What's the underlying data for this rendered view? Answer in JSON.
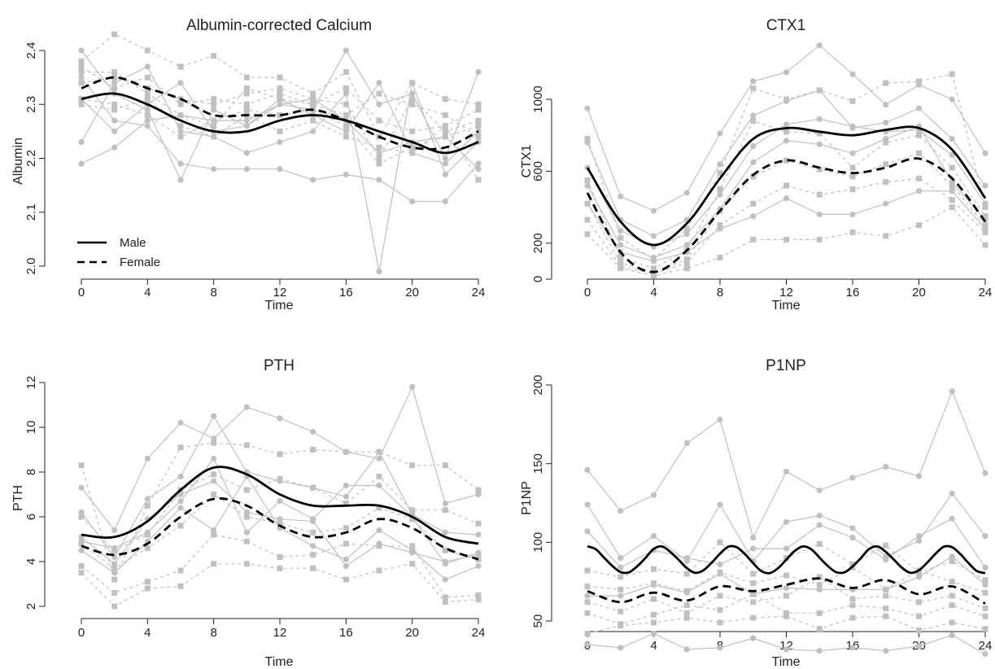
{
  "colors": {
    "individual": "#c0c0c0",
    "mean": "#000000",
    "axis": "#222222"
  },
  "chart_data": [
    {
      "type": "line",
      "title": "Albumin-corrected Calcium",
      "xlabel": "Time",
      "ylabel": "Albumin",
      "xlim": [
        0,
        24
      ],
      "ylim": [
        2.0,
        2.4
      ],
      "xticks": [
        0,
        4,
        8,
        12,
        16,
        20,
        24
      ],
      "yticks": [
        2.0,
        2.1,
        2.2,
        2.3,
        2.4
      ],
      "yticklabels": [
        "2.0",
        "2.1",
        "2.2",
        "2.3",
        "2.4"
      ],
      "legend": {
        "position": "bottom-left",
        "entries": [
          {
            "label": "Male",
            "style": "solid"
          },
          {
            "label": "Female",
            "style": "dashed"
          }
        ]
      },
      "x": [
        0,
        2,
        4,
        6,
        8,
        10,
        12,
        14,
        16,
        18,
        20,
        22,
        24
      ],
      "series": [
        {
          "name": "Male",
          "style": "solid",
          "values": [
            2.31,
            2.32,
            2.3,
            2.27,
            2.25,
            2.25,
            2.27,
            2.28,
            2.27,
            2.25,
            2.23,
            2.21,
            2.23
          ]
        },
        {
          "name": "Female",
          "style": "dashed",
          "values": [
            2.33,
            2.35,
            2.33,
            2.31,
            2.28,
            2.28,
            2.28,
            2.29,
            2.27,
            2.24,
            2.22,
            2.22,
            2.25
          ]
        }
      ],
      "individual_lines": [
        {
          "group": "Male",
          "values": [
            2.4,
            2.32,
            2.29,
            2.16,
            2.29,
            2.26,
            2.3,
            2.29,
            2.4,
            2.3,
            2.32,
            2.2,
            2.36
          ]
        },
        {
          "group": "Male",
          "values": [
            2.35,
            2.27,
            2.26,
            2.19,
            2.18,
            2.18,
            2.18,
            2.16,
            2.17,
            2.16,
            2.12,
            2.12,
            2.19
          ]
        },
        {
          "group": "Male",
          "values": [
            2.23,
            2.34,
            2.37,
            2.25,
            2.24,
            2.21,
            2.23,
            2.25,
            2.32,
            1.99,
            2.34,
            2.17,
            2.23
          ]
        },
        {
          "group": "Male",
          "values": [
            2.19,
            2.22,
            2.27,
            2.28,
            2.27,
            2.27,
            2.3,
            2.31,
            2.27,
            2.21,
            2.23,
            2.24,
            2.18
          ]
        },
        {
          "group": "Male",
          "values": [
            2.31,
            2.25,
            2.3,
            2.34,
            2.25,
            2.26,
            2.31,
            2.28,
            2.25,
            2.34,
            2.21,
            2.19,
            2.25
          ]
        },
        {
          "group": "Female",
          "values": [
            2.38,
            2.43,
            2.4,
            2.37,
            2.39,
            2.35,
            2.35,
            2.32,
            2.36,
            2.24,
            2.34,
            2.31,
            2.3
          ]
        },
        {
          "group": "Female",
          "values": [
            2.34,
            2.35,
            2.33,
            2.31,
            2.3,
            2.32,
            2.33,
            2.31,
            2.3,
            2.2,
            2.31,
            2.25,
            2.27
          ]
        },
        {
          "group": "Female",
          "values": [
            2.31,
            2.3,
            2.28,
            2.24,
            2.27,
            2.29,
            2.28,
            2.29,
            2.26,
            2.19,
            2.22,
            2.24,
            2.26
          ]
        },
        {
          "group": "Female",
          "values": [
            2.37,
            2.33,
            2.35,
            2.3,
            2.31,
            2.3,
            2.32,
            2.3,
            2.33,
            2.27,
            2.25,
            2.26,
            2.29
          ]
        },
        {
          "group": "Female",
          "values": [
            2.36,
            2.36,
            2.32,
            2.28,
            2.26,
            2.33,
            2.31,
            2.3,
            2.28,
            2.32,
            2.3,
            2.28,
            2.24
          ]
        },
        {
          "group": "Female",
          "values": [
            2.3,
            2.29,
            2.31,
            2.26,
            2.24,
            2.28,
            2.25,
            2.27,
            2.24,
            2.22,
            2.21,
            2.26,
            2.16
          ]
        }
      ]
    },
    {
      "type": "line",
      "title": "CTX1",
      "xlabel": "Time",
      "ylabel": "CTX1",
      "xlim": [
        0,
        24
      ],
      "ylim": [
        0,
        1000
      ],
      "xticks": [
        0,
        4,
        8,
        12,
        16,
        20,
        24
      ],
      "yticks": [
        0,
        200,
        600,
        1000
      ],
      "yticklabels": [
        "0",
        "200",
        "600",
        "1000"
      ],
      "x": [
        0,
        2,
        4,
        6,
        8,
        10,
        12,
        14,
        16,
        18,
        20,
        22,
        24
      ],
      "series": [
        {
          "name": "Male",
          "style": "solid",
          "values": [
            620,
            320,
            190,
            310,
            560,
            780,
            840,
            820,
            800,
            830,
            840,
            720,
            450
          ]
        },
        {
          "name": "Female",
          "style": "dashed",
          "values": [
            480,
            150,
            40,
            160,
            380,
            580,
            660,
            620,
            590,
            620,
            670,
            560,
            320
          ]
        }
      ],
      "individual_lines": [
        {
          "group": "Male",
          "values": [
            950,
            460,
            380,
            480,
            810,
            1100,
            1150,
            1300,
            1140,
            970,
            1080,
            1000,
            700
          ]
        },
        {
          "group": "Male",
          "values": [
            760,
            330,
            240,
            330,
            640,
            910,
            990,
            1050,
            840,
            870,
            950,
            780,
            520
          ]
        },
        {
          "group": "Male",
          "values": [
            620,
            270,
            180,
            250,
            470,
            740,
            860,
            890,
            850,
            820,
            830,
            690,
            420
          ]
        },
        {
          "group": "Male",
          "values": [
            520,
            190,
            120,
            190,
            390,
            650,
            770,
            750,
            700,
            780,
            850,
            540,
            330
          ]
        },
        {
          "group": "Male",
          "values": [
            420,
            150,
            100,
            150,
            280,
            350,
            450,
            360,
            360,
            420,
            490,
            490,
            280
          ]
        },
        {
          "group": "Female",
          "values": [
            780,
            230,
            110,
            280,
            590,
            1060,
            1000,
            1050,
            990,
            1090,
            1100,
            1140,
            400
          ]
        },
        {
          "group": "Female",
          "values": [
            550,
            120,
            60,
            160,
            500,
            880,
            820,
            810,
            620,
            760,
            800,
            620,
            350
          ]
        },
        {
          "group": "Female",
          "values": [
            420,
            90,
            40,
            110,
            380,
            570,
            660,
            610,
            570,
            640,
            700,
            520,
            300
          ]
        },
        {
          "group": "Female",
          "values": [
            330,
            70,
            30,
            90,
            300,
            420,
            520,
            470,
            500,
            540,
            560,
            440,
            260
          ]
        },
        {
          "group": "Female",
          "values": [
            250,
            60,
            20,
            60,
            120,
            220,
            220,
            220,
            260,
            240,
            300,
            400,
            190
          ]
        }
      ]
    },
    {
      "type": "line",
      "title": "PTH",
      "xlabel": "Time",
      "ylabel": "PTH",
      "xlim": [
        0,
        24
      ],
      "ylim": [
        2,
        12
      ],
      "xticks": [
        0,
        4,
        8,
        12,
        16,
        20,
        24
      ],
      "yticks": [
        2,
        4,
        6,
        8,
        10,
        12
      ],
      "yticklabels": [
        "2",
        "4",
        "6",
        "8",
        "10",
        "12"
      ],
      "x": [
        0,
        2,
        4,
        6,
        8,
        10,
        12,
        14,
        16,
        18,
        20,
        22,
        24
      ],
      "series": [
        {
          "name": "Male",
          "style": "solid",
          "values": [
            5.2,
            5.1,
            5.8,
            7.2,
            8.2,
            7.9,
            7.0,
            6.5,
            6.5,
            6.5,
            6.0,
            5.1,
            4.8
          ]
        },
        {
          "name": "Female",
          "style": "dashed",
          "values": [
            4.7,
            4.3,
            4.8,
            6.0,
            6.8,
            6.5,
            5.6,
            5.1,
            5.3,
            5.9,
            5.5,
            4.6,
            4.1
          ]
        }
      ],
      "individual_lines": [
        {
          "group": "Male",
          "values": [
            7.3,
            5.4,
            8.6,
            10.2,
            9.5,
            10.9,
            10.4,
            9.8,
            8.9,
            8.6,
            11.8,
            6.6,
            7.0
          ]
        },
        {
          "group": "Male",
          "values": [
            6.2,
            4.2,
            6.8,
            7.8,
            10.5,
            8.0,
            7.6,
            7.3,
            6.9,
            8.9,
            6.1,
            5.3,
            5.2
          ]
        },
        {
          "group": "Male",
          "values": [
            5.1,
            3.9,
            5.9,
            7.0,
            7.6,
            6.2,
            5.9,
            5.8,
            3.8,
            4.8,
            4.4,
            4.0,
            4.3
          ]
        },
        {
          "group": "Male",
          "values": [
            4.5,
            3.5,
            4.9,
            6.4,
            5.4,
            7.8,
            5.5,
            4.7,
            4.1,
            5.4,
            4.5,
            3.2,
            3.8
          ]
        },
        {
          "group": "Male",
          "values": [
            4.9,
            4.6,
            5.3,
            6.7,
            8.6,
            5.3,
            6.7,
            5.9,
            7.4,
            7.4,
            6.0,
            3.9,
            4.4
          ]
        },
        {
          "group": "Female",
          "values": [
            8.3,
            3.2,
            6.5,
            9.1,
            9.3,
            9.2,
            8.8,
            9.0,
            8.9,
            8.9,
            8.3,
            8.3,
            7.2
          ]
        },
        {
          "group": "Female",
          "values": [
            6.0,
            4.5,
            5.2,
            7.2,
            7.9,
            7.2,
            7.7,
            7.3,
            6.6,
            7.8,
            6.3,
            6.3,
            5.7
          ]
        },
        {
          "group": "Female",
          "values": [
            4.8,
            3.7,
            4.6,
            5.6,
            7.0,
            6.0,
            5.7,
            5.3,
            5.5,
            6.4,
            5.9,
            4.5,
            4.1
          ]
        },
        {
          "group": "Female",
          "values": [
            3.8,
            2.6,
            3.1,
            3.6,
            5.2,
            4.9,
            4.2,
            4.3,
            4.8,
            4.7,
            4.7,
            2.4,
            2.5
          ]
        },
        {
          "group": "Female",
          "values": [
            3.5,
            2.0,
            2.8,
            2.9,
            3.9,
            3.9,
            3.7,
            3.7,
            3.2,
            3.6,
            3.9,
            2.2,
            2.3
          ]
        }
      ]
    },
    {
      "type": "line",
      "title": "P1NP",
      "xlabel": "Time",
      "ylabel": "P1NP",
      "xlim": [
        0,
        24
      ],
      "ylim": [
        25,
        200
      ],
      "xticks": [
        0,
        4,
        8,
        12,
        16,
        20,
        24
      ],
      "yticks": [
        50,
        100,
        150,
        200
      ],
      "yticklabels": [
        "50",
        "100",
        "150",
        "200"
      ],
      "x": [
        0,
        2,
        4,
        6,
        8,
        10,
        12,
        14,
        16,
        18,
        20,
        22,
        24
      ],
      "series": [
        {
          "name": "Male",
          "style": "solid",
          "x": [
            0.0,
            0.5,
            1.0,
            1.5,
            2.0,
            2.5,
            3.0,
            3.5,
            4.0,
            4.5,
            5.0,
            5.5,
            6.0,
            6.5,
            7.0,
            7.5,
            8.0,
            8.5,
            9.0,
            9.5,
            10.0,
            10.5,
            11.0,
            11.5,
            12.0,
            12.5,
            13.0,
            13.5,
            14.0,
            14.5,
            15.0,
            15.5,
            16.0,
            16.5,
            17.0,
            17.5,
            18.0,
            18.5,
            19.0,
            19.5,
            20.0,
            20.5,
            21.0,
            21.5,
            22.0,
            22.5,
            23.0,
            23.5,
            24.0
          ],
          "values": [
            97.4,
            95.6,
            90.3,
            85.0,
            81.1,
            80.9,
            84.7,
            90.0,
            95.8,
            97.4,
            93.9,
            88.9,
            83.6,
            80.6,
            82.2,
            87.1,
            92.7,
            97.2,
            96.9,
            92.5,
            86.7,
            81.7,
            80.4,
            83.5,
            89.0,
            94.5,
            97.4,
            95.6,
            90.3,
            85.0,
            81.1,
            80.9,
            84.7,
            90.0,
            95.8,
            97.4,
            93.9,
            88.9,
            83.6,
            80.6,
            82.2,
            87.1,
            92.7,
            97.2,
            96.9,
            92.5,
            86.7,
            81.7,
            80.4
          ]
        },
        {
          "name": "Female",
          "style": "dashed",
          "values": [
            69,
            62,
            68,
            63,
            72,
            69,
            73,
            77,
            71,
            76,
            67,
            72,
            61
          ]
        }
      ],
      "individual_lines": [
        {
          "group": "Male",
          "values": [
            146,
            120,
            130,
            163,
            178,
            103,
            145,
            133,
            141,
            148,
            142,
            196,
            144
          ]
        },
        {
          "group": "Male",
          "values": [
            124,
            90,
            104,
            88,
            124,
            88,
            113,
            117,
            109,
            91,
            101,
            131,
            104
          ]
        },
        {
          "group": "Male",
          "values": [
            107,
            84,
            95,
            90,
            86,
            96,
            96,
            111,
            103,
            89,
            104,
            115,
            84
          ]
        },
        {
          "group": "Male",
          "values": [
            66,
            66,
            73,
            68,
            80,
            67,
            71,
            70,
            70,
            70,
            78,
            91,
            73
          ]
        },
        {
          "group": "Male",
          "values": [
            35,
            33,
            42,
            32,
            33,
            39,
            32,
            31,
            33,
            31,
            34,
            41,
            29
          ]
        },
        {
          "group": "Female",
          "values": [
            82,
            78,
            83,
            80,
            100,
            80,
            90,
            99,
            86,
            98,
            81,
            88,
            76
          ]
        },
        {
          "group": "Female",
          "values": [
            72,
            70,
            74,
            69,
            81,
            74,
            79,
            73,
            84,
            70,
            82,
            75,
            68
          ]
        },
        {
          "group": "Female",
          "values": [
            62,
            56,
            64,
            55,
            66,
            62,
            66,
            78,
            64,
            66,
            62,
            66,
            58
          ]
        },
        {
          "group": "Female",
          "values": [
            55,
            48,
            54,
            60,
            57,
            67,
            55,
            55,
            60,
            58,
            53,
            60,
            53
          ]
        },
        {
          "group": "Female",
          "values": [
            42,
            47,
            49,
            52,
            49,
            52,
            53,
            45,
            52,
            53,
            44,
            49,
            45
          ]
        }
      ]
    }
  ]
}
